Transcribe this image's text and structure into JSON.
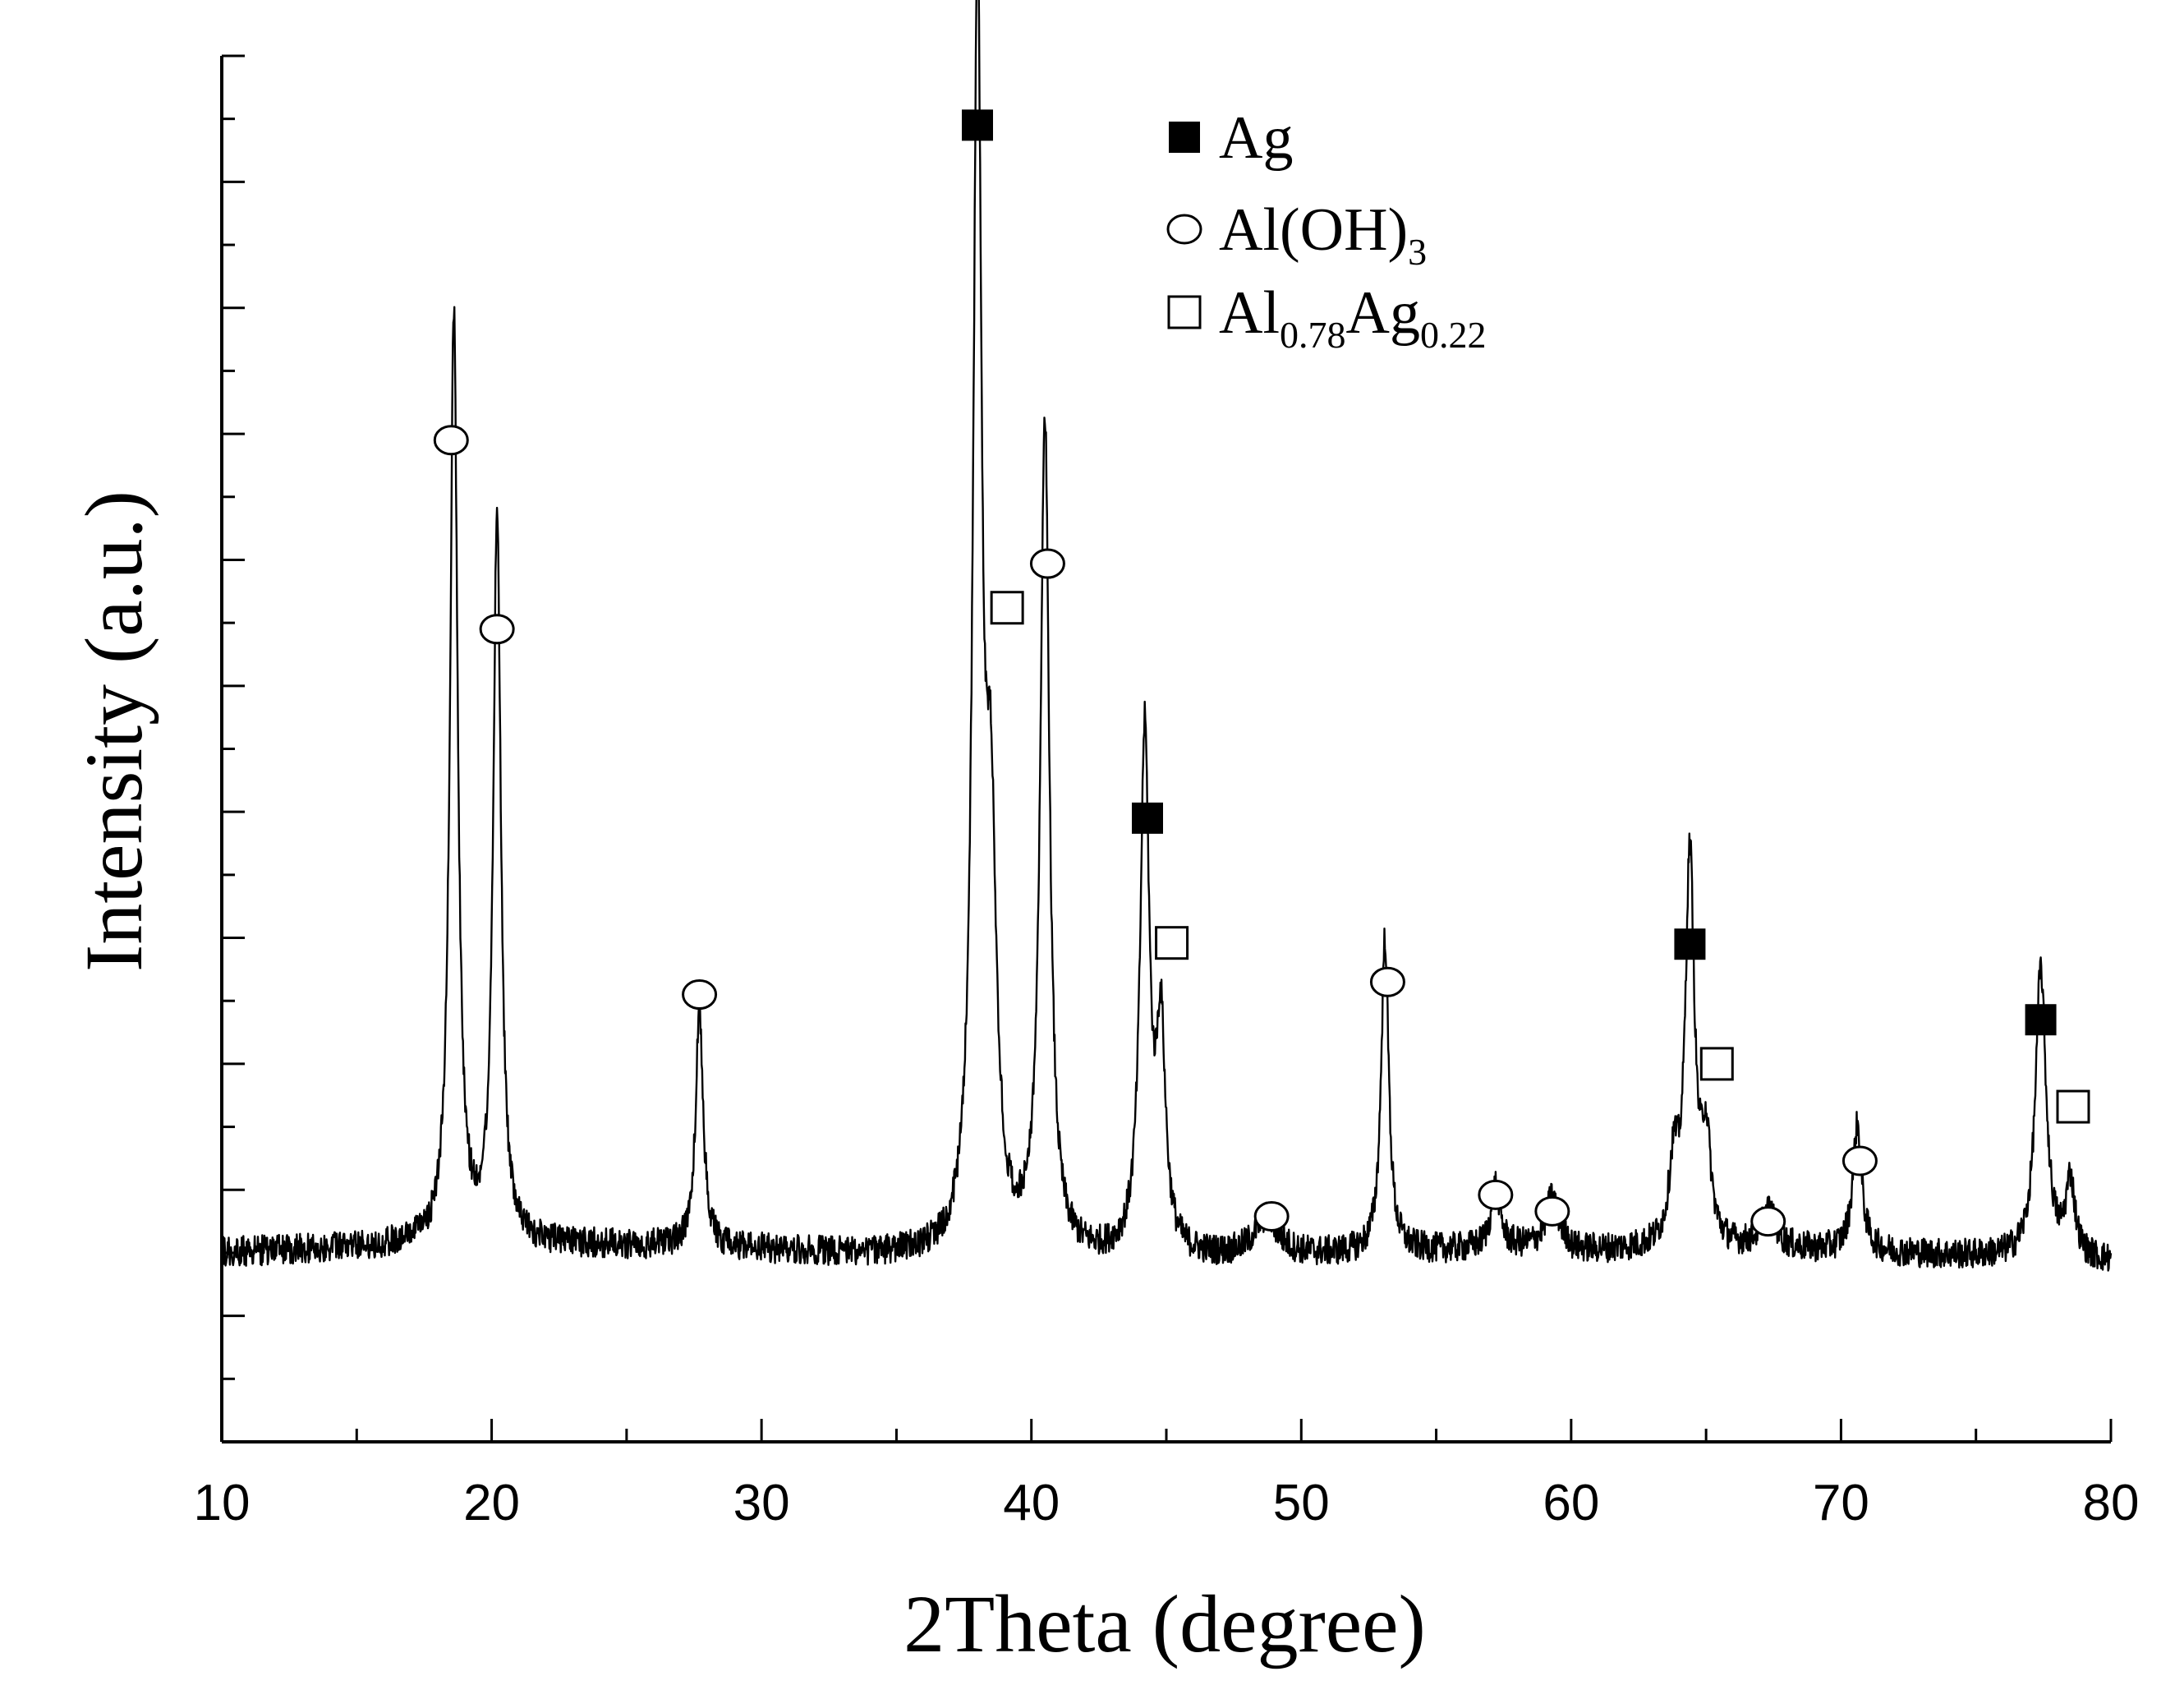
{
  "chart_data": {
    "type": "line",
    "xlabel": "2Theta (degree)",
    "ylabel": "Intensity (a.u.)",
    "xlim": [
      10,
      80
    ],
    "ylim": [
      0,
      110
    ],
    "x_ticks": [
      "10",
      "20",
      "30",
      "40",
      "50",
      "60",
      "70",
      "80"
    ],
    "y_ticks_labeled": false,
    "grid": false,
    "legend_position": "top-center",
    "legend": [
      {
        "marker": "filled-square",
        "label": "Ag",
        "label_parts": [
          {
            "text": "Ag"
          }
        ]
      },
      {
        "marker": "open-circle",
        "label": "Al(OH)3",
        "label_parts": [
          {
            "text": "Al(OH)"
          },
          {
            "text": "3",
            "sub": true
          }
        ]
      },
      {
        "marker": "open-square",
        "label": "Al0.78Ag0.22",
        "label_parts": [
          {
            "text": "Al"
          },
          {
            "text": "0.78",
            "sub": true
          },
          {
            "text": "Ag"
          },
          {
            "text": "0.22",
            "sub": true
          }
        ]
      }
    ],
    "baseline": 15,
    "noise_amplitude": 1.2,
    "series": [
      {
        "peaks": [
          {
            "x": 18.6,
            "height": 74,
            "width": 0.25
          },
          {
            "x": 20.2,
            "height": 58,
            "width": 0.25
          },
          {
            "x": 27.7,
            "height": 19,
            "width": 0.25
          },
          {
            "x": 38.0,
            "height": 100,
            "width": 0.28
          },
          {
            "x": 38.5,
            "height": 30,
            "width": 0.35
          },
          {
            "x": 40.5,
            "height": 66,
            "width": 0.3
          },
          {
            "x": 44.2,
            "height": 41,
            "width": 0.3
          },
          {
            "x": 44.8,
            "height": 17,
            "width": 0.3
          },
          {
            "x": 48.7,
            "height": 3,
            "width": 0.8
          },
          {
            "x": 53.1,
            "height": 25,
            "width": 0.25
          },
          {
            "x": 57.2,
            "height": 5,
            "width": 0.3
          },
          {
            "x": 59.3,
            "height": 4,
            "width": 0.4
          },
          {
            "x": 63.8,
            "height": 6,
            "width": 0.3
          },
          {
            "x": 64.4,
            "height": 31,
            "width": 0.3
          },
          {
            "x": 65.0,
            "height": 8,
            "width": 0.3
          },
          {
            "x": 67.3,
            "height": 3,
            "width": 0.5
          },
          {
            "x": 70.6,
            "height": 10,
            "width": 0.3
          },
          {
            "x": 77.4,
            "height": 23,
            "width": 0.35
          },
          {
            "x": 78.5,
            "height": 6,
            "width": 0.3
          }
        ]
      }
    ],
    "phase_markers": [
      {
        "x": 38.0,
        "y": 104.5,
        "phase": "Ag",
        "marker": "filled-square"
      },
      {
        "x": 44.3,
        "y": 49.5,
        "phase": "Ag",
        "marker": "filled-square"
      },
      {
        "x": 64.4,
        "y": 39.5,
        "phase": "Ag",
        "marker": "filled-square"
      },
      {
        "x": 77.4,
        "y": 33.5,
        "phase": "Ag",
        "marker": "filled-square"
      },
      {
        "x": 18.5,
        "y": 79.5,
        "phase": "Al(OH)3",
        "marker": "open-circle"
      },
      {
        "x": 20.2,
        "y": 64.5,
        "phase": "Al(OH)3",
        "marker": "open-circle"
      },
      {
        "x": 27.7,
        "y": 35.5,
        "phase": "Al(OH)3",
        "marker": "open-circle"
      },
      {
        "x": 40.6,
        "y": 69.7,
        "phase": "Al(OH)3",
        "marker": "open-circle"
      },
      {
        "x": 48.9,
        "y": 17.9,
        "phase": "Al(OH)3",
        "marker": "open-circle"
      },
      {
        "x": 53.2,
        "y": 36.5,
        "phase": "Al(OH)3",
        "marker": "open-circle"
      },
      {
        "x": 57.2,
        "y": 19.6,
        "phase": "Al(OH)3",
        "marker": "open-circle"
      },
      {
        "x": 59.3,
        "y": 18.3,
        "phase": "Al(OH)3",
        "marker": "open-circle"
      },
      {
        "x": 67.3,
        "y": 17.5,
        "phase": "Al(OH)3",
        "marker": "open-circle"
      },
      {
        "x": 70.7,
        "y": 22.3,
        "phase": "Al(OH)3",
        "marker": "open-circle"
      },
      {
        "x": 39.1,
        "y": 66.2,
        "phase": "Al0.78Ag0.22",
        "marker": "open-square"
      },
      {
        "x": 45.2,
        "y": 39.6,
        "phase": "Al0.78Ag0.22",
        "marker": "open-square"
      },
      {
        "x": 65.4,
        "y": 30.0,
        "phase": "Al0.78Ag0.22",
        "marker": "open-square"
      },
      {
        "x": 78.6,
        "y": 26.6,
        "phase": "Al0.78Ag0.22",
        "marker": "open-square"
      }
    ]
  }
}
